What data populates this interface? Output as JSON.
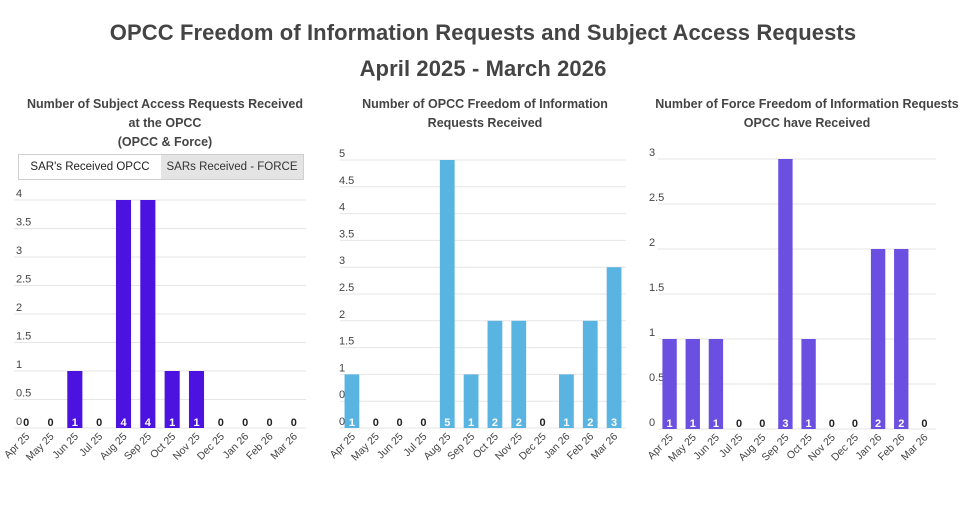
{
  "header": {
    "title_line1": "OPCC Freedom of Information Requests and Subject Access Requests",
    "title_line2": "April 2025 - March 2026"
  },
  "tabs": [
    {
      "label": "SAR's Received OPCC",
      "active": true
    },
    {
      "label": "SARs Received - FORCE",
      "active": false
    }
  ],
  "colors": {
    "sar": "#4b12e0",
    "foi": "#5ab4e2",
    "force_foi": "#6a4fe0"
  },
  "chart_data": [
    {
      "type": "bar",
      "title_lines": [
        "Number of Subject Access Requests Received",
        "at the OPCC",
        "(OPCC & Force)"
      ],
      "categories": [
        "Apr 25",
        "May 25",
        "Jun 25",
        "Jul 25",
        "Aug 25",
        "Sep 25",
        "Oct 25",
        "Nov 25",
        "Dec 25",
        "Jan 26",
        "Feb 26",
        "Mar 26"
      ],
      "values": [
        0,
        0,
        1,
        0,
        4,
        4,
        1,
        1,
        0,
        0,
        0,
        0
      ],
      "ylim": [
        0,
        4
      ],
      "yticks": [
        "0",
        "0.5",
        "1",
        "1.5",
        "2",
        "2.5",
        "3",
        "3.5",
        "4"
      ],
      "grid": true,
      "color": "#4b12e0"
    },
    {
      "type": "bar",
      "title_lines": [
        "Number of OPCC Freedom of Information",
        "Requests Received"
      ],
      "categories": [
        "Apr 25",
        "May 25",
        "Jun 25",
        "Jul 25",
        "Aug 25",
        "Sep 25",
        "Oct 25",
        "Nov 25",
        "Dec 25",
        "Jan 26",
        "Feb 26",
        "Mar 26"
      ],
      "values": [
        1,
        0,
        0,
        0,
        5,
        1,
        2,
        2,
        0,
        1,
        2,
        3
      ],
      "ylim": [
        0,
        5
      ],
      "yticks": [
        "0",
        "0.5",
        "1",
        "1.5",
        "2",
        "2.5",
        "3",
        "3.5",
        "4",
        "4.5",
        "5"
      ],
      "grid": true,
      "color": "#5ab4e2"
    },
    {
      "type": "bar",
      "title_lines": [
        "Number of Force Freedom of Information Requests",
        "OPCC have Received"
      ],
      "categories": [
        "Apr 25",
        "May 25",
        "Jun 25",
        "Jul 25",
        "Aug 25",
        "Sep 25",
        "Oct 25",
        "Nov 25",
        "Dec 25",
        "Jan 26",
        "Feb 26",
        "Mar 26"
      ],
      "values": [
        1,
        1,
        1,
        0,
        0,
        3,
        1,
        0,
        0,
        2,
        2,
        0
      ],
      "ylim": [
        0,
        3
      ],
      "yticks": [
        "0",
        "0.5",
        "1",
        "1.5",
        "2",
        "2.5",
        "3"
      ],
      "grid": true,
      "color": "#6a4fe0"
    }
  ]
}
